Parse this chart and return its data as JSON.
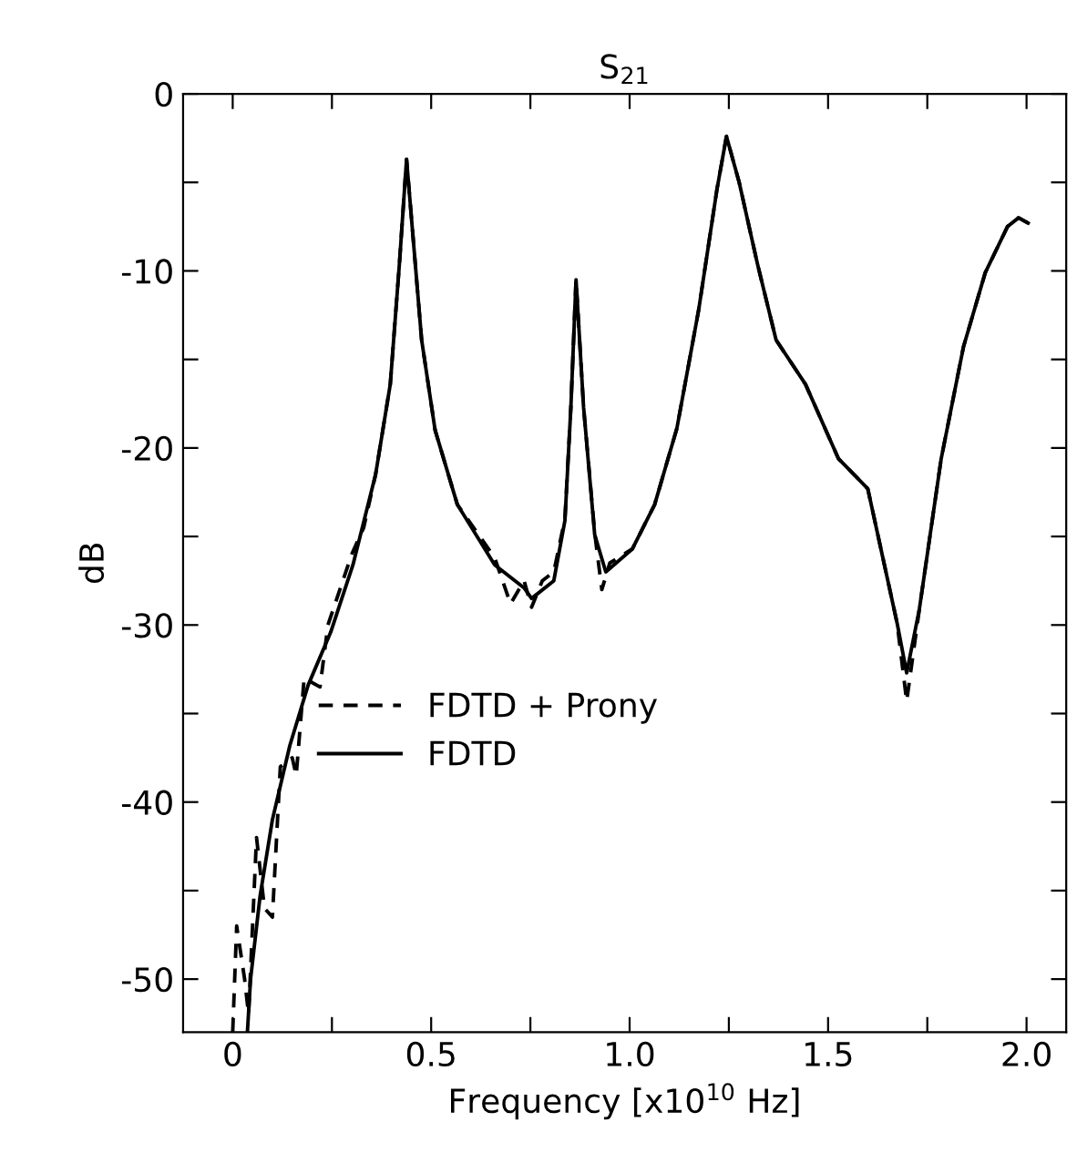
{
  "chart_data": {
    "type": "line",
    "title": "S$_{21}$",
    "xlabel": "Frequency [x10$^{10}$ Hz]",
    "ylabel": "dB",
    "xlim": [
      -0.125,
      2.1
    ],
    "ylim": [
      -53,
      0
    ],
    "xticks": [
      0,
      {
        "value": 0.25,
        "label": null
      },
      0.5,
      {
        "value": 0.75,
        "label": null
      },
      {
        "value": 1.0,
        "label": "1.0"
      },
      {
        "value": 1.25,
        "label": null
      },
      1.5,
      {
        "value": 1.75,
        "label": null
      },
      {
        "value": 2.0,
        "label": "2.0"
      }
    ],
    "yticks": [
      -50,
      {
        "value": -45,
        "label": null
      },
      -40,
      {
        "value": -35,
        "label": null
      },
      -30,
      {
        "value": -25,
        "label": null
      },
      -20,
      {
        "value": -15,
        "label": null
      },
      -10,
      {
        "value": -5,
        "label": null
      },
      0
    ],
    "grid": false,
    "legend": "center left",
    "series": [
      {
        "name": "FDTD + Prony",
        "color": "#000000",
        "line_style": "dashed",
        "x": [
          0.0,
          0.01,
          0.03,
          0.04,
          0.06,
          0.08,
          0.1,
          0.12,
          0.15,
          0.16,
          0.18,
          0.22,
          0.24,
          0.27,
          0.3,
          0.33,
          0.36,
          0.397,
          0.42,
          0.438,
          0.457,
          0.476,
          0.51,
          0.566,
          0.66,
          0.7,
          0.734,
          0.753,
          0.78,
          0.809,
          0.837,
          0.852,
          0.865,
          0.884,
          0.912,
          0.93,
          0.95,
          1.007,
          1.063,
          1.119,
          1.174,
          1.22,
          1.244,
          1.276,
          1.322,
          1.369,
          1.443,
          1.526,
          1.6,
          1.637,
          1.674,
          1.698,
          1.73,
          1.785,
          1.841,
          1.896,
          1.952,
          1.98,
          2.004
        ],
        "values": [
          -53,
          -47,
          -50,
          -52,
          -42,
          -46,
          -46.5,
          -38,
          -37.5,
          -38.5,
          -33,
          -33.5,
          -30,
          -28,
          -26,
          -24.5,
          -21.5,
          -16.4,
          -9.6,
          -3.7,
          -8.8,
          -13.9,
          -19,
          -23.2,
          -26.2,
          -28.8,
          -27.5,
          -29,
          -27.5,
          -27,
          -24,
          -17.7,
          -10.5,
          -17.7,
          -24.8,
          -28,
          -26.5,
          -25.7,
          -23.2,
          -18.9,
          -12.2,
          -5.4,
          -2.4,
          -5.0,
          -9.6,
          -13.9,
          -16.4,
          -20.6,
          -22.3,
          -26.1,
          -29.9,
          -34.3,
          -29.1,
          -20.6,
          -14.3,
          -10.1,
          -7.5,
          -7.0,
          -7.3
        ]
      },
      {
        "name": "FDTD",
        "color": "#000000",
        "line_style": "solid",
        "x": [
          0.037,
          0.045,
          0.069,
          0.1,
          0.144,
          0.19,
          0.247,
          0.303,
          0.36,
          0.397,
          0.42,
          0.438,
          0.457,
          0.476,
          0.51,
          0.566,
          0.66,
          0.734,
          0.753,
          0.809,
          0.837,
          0.852,
          0.865,
          0.884,
          0.912,
          0.94,
          1.007,
          1.063,
          1.119,
          1.174,
          1.22,
          1.244,
          1.276,
          1.322,
          1.369,
          1.443,
          1.526,
          1.6,
          1.637,
          1.674,
          1.698,
          1.73,
          1.785,
          1.841,
          1.896,
          1.952,
          1.98,
          2.004
        ],
        "values": [
          -53,
          -50,
          -45.3,
          -41,
          -36.8,
          -33.4,
          -30.4,
          -26.6,
          -21.5,
          -16.4,
          -9.6,
          -3.7,
          -8.8,
          -13.9,
          -19,
          -23.2,
          -26.6,
          -27.9,
          -28.5,
          -27.5,
          -24.1,
          -17.7,
          -10.5,
          -17.7,
          -24.9,
          -27,
          -25.7,
          -23.2,
          -18.9,
          -12.2,
          -5.4,
          -2.4,
          -5.0,
          -9.6,
          -13.9,
          -16.4,
          -20.6,
          -22.3,
          -26.1,
          -29.9,
          -32.7,
          -29.1,
          -20.6,
          -14.3,
          -10.1,
          -7.5,
          -7.0,
          -7.3
        ]
      }
    ]
  }
}
